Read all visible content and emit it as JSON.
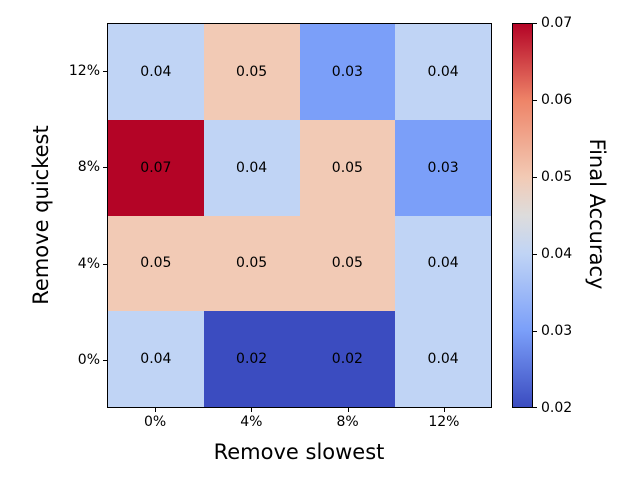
{
  "chart_data": {
    "type": "heatmap",
    "title": "",
    "xlabel": "Remove slowest",
    "ylabel": "Remove quickest",
    "colorbar_label": "Final Accuracy",
    "x_categories": [
      "0%",
      "4%",
      "8%",
      "12%"
    ],
    "y_categories": [
      "12%",
      "8%",
      "4%",
      "0%"
    ],
    "rows": [
      {
        "label": "12%",
        "values": [
          0.04,
          0.05,
          0.03,
          0.04
        ]
      },
      {
        "label": "8%",
        "values": [
          0.07,
          0.04,
          0.05,
          0.03
        ]
      },
      {
        "label": "4%",
        "values": [
          0.05,
          0.05,
          0.05,
          0.04
        ]
      },
      {
        "label": "0%",
        "values": [
          0.04,
          0.02,
          0.02,
          0.04
        ]
      }
    ],
    "vmin": 0.02,
    "vmax": 0.07,
    "colormap": "coolwarm",
    "colorbar_ticks": [
      0.07,
      0.06,
      0.05,
      0.04,
      0.03,
      0.02
    ],
    "value_colors": {
      "0.02": "#3b4cc0",
      "0.03": "#7b9ff9",
      "0.04": "#c0d4f5",
      "0.05": "#f2cab5",
      "0.06": "#ee8468",
      "0.07": "#b40426"
    },
    "gradient_stops": [
      {
        "value": 0.02,
        "color": "#3b4cc0"
      },
      {
        "value": 0.03,
        "color": "#7b9ff9"
      },
      {
        "value": 0.04,
        "color": "#c0d4f5"
      },
      {
        "value": 0.045,
        "color": "#dddcdc"
      },
      {
        "value": 0.05,
        "color": "#f2cab5"
      },
      {
        "value": 0.06,
        "color": "#ee8468"
      },
      {
        "value": 0.07,
        "color": "#b40426"
      }
    ],
    "grid": false,
    "legend_position": "colorbar-right",
    "text_color": "#000000",
    "background": "#ffffff"
  }
}
